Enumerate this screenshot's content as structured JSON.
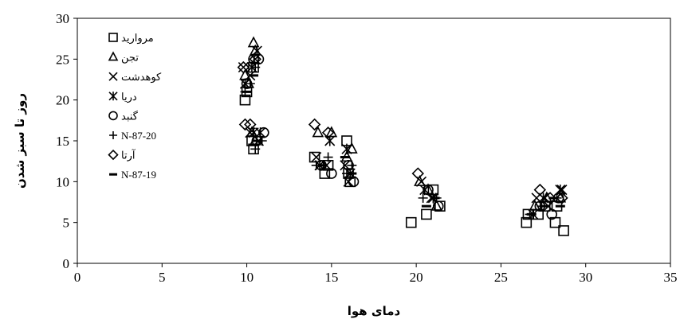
{
  "chart_data": {
    "type": "scatter",
    "title": "",
    "xlabel": "دمای هوا",
    "ylabel": "روز تا سبز شدن",
    "xlim": [
      0,
      35
    ],
    "ylim": [
      0,
      30
    ],
    "x_ticks": [
      "0",
      "5",
      "10",
      "15",
      "20",
      "25",
      "30",
      "35"
    ],
    "y_ticks": [
      "0",
      "5",
      "10",
      "15",
      "20",
      "25",
      "30"
    ],
    "grid": false,
    "legend_position": "top-left inside",
    "series": [
      {
        "name": "مروارید",
        "marker": "square",
        "points": [
          [
            9.9,
            20
          ],
          [
            10,
            21
          ],
          [
            10.4,
            24
          ],
          [
            10.3,
            15
          ],
          [
            10.4,
            14
          ],
          [
            14,
            13
          ],
          [
            14.6,
            11
          ],
          [
            14.8,
            12
          ],
          [
            15.9,
            15
          ],
          [
            16,
            11
          ],
          [
            16.1,
            10
          ],
          [
            19.7,
            5
          ],
          [
            20.6,
            6
          ],
          [
            21,
            9
          ],
          [
            21.4,
            7
          ],
          [
            26.5,
            5
          ],
          [
            26.6,
            6
          ],
          [
            27.2,
            6
          ],
          [
            27.6,
            7
          ],
          [
            28.2,
            5
          ],
          [
            28.7,
            4
          ],
          [
            28.3,
            7
          ]
        ]
      },
      {
        "name": "تجن",
        "marker": "triangle",
        "points": [
          [
            9.9,
            23
          ],
          [
            10.1,
            22
          ],
          [
            10.4,
            27
          ],
          [
            10.5,
            26
          ],
          [
            10.3,
            16
          ],
          [
            10.5,
            15
          ],
          [
            14.2,
            16
          ],
          [
            15,
            16
          ],
          [
            15.9,
            13
          ],
          [
            16.2,
            14
          ],
          [
            20.2,
            10
          ],
          [
            20.7,
            9
          ],
          [
            21.2,
            7
          ],
          [
            27,
            7
          ],
          [
            27.7,
            8
          ],
          [
            28.5,
            8
          ]
        ]
      },
      {
        "name": "کوهدشت",
        "marker": "x",
        "points": [
          [
            9.8,
            24
          ],
          [
            10.2,
            23
          ],
          [
            10.5,
            25
          ],
          [
            10.2,
            16
          ],
          [
            10.7,
            15
          ],
          [
            14.1,
            13
          ],
          [
            14.7,
            12
          ],
          [
            15.8,
            12
          ],
          [
            16,
            10
          ],
          [
            20.3,
            10
          ],
          [
            20.9,
            8
          ],
          [
            27.1,
            8
          ],
          [
            27.8,
            7
          ],
          [
            28.6,
            9
          ]
        ]
      },
      {
        "name": "دریا",
        "marker": "asterisk",
        "points": [
          [
            9.9,
            22
          ],
          [
            10.3,
            24
          ],
          [
            10.6,
            26
          ],
          [
            10.4,
            16
          ],
          [
            10.8,
            16
          ],
          [
            14.3,
            12
          ],
          [
            14.9,
            15
          ],
          [
            15.9,
            14
          ],
          [
            16.1,
            11
          ],
          [
            20.5,
            9
          ],
          [
            21,
            8
          ],
          [
            26.9,
            6
          ],
          [
            27.5,
            8
          ],
          [
            28.5,
            9
          ]
        ]
      },
      {
        "name": "گنبد",
        "marker": "circle",
        "points": [
          [
            10,
            22
          ],
          [
            10.4,
            25
          ],
          [
            10.7,
            25
          ],
          [
            10.6,
            15
          ],
          [
            11,
            16
          ],
          [
            14.4,
            12
          ],
          [
            15,
            11
          ],
          [
            16,
            12
          ],
          [
            16.3,
            10
          ],
          [
            20.7,
            9
          ],
          [
            21.3,
            7
          ],
          [
            27.3,
            7
          ],
          [
            28,
            6
          ],
          [
            28.4,
            8
          ]
        ]
      },
      {
        "name": "N-87-20",
        "marker": "plus",
        "points": [
          [
            9.9,
            21
          ],
          [
            10.2,
            22
          ],
          [
            10.5,
            24
          ],
          [
            10.5,
            14
          ],
          [
            10.9,
            15
          ],
          [
            14.1,
            12
          ],
          [
            14.8,
            13
          ],
          [
            15.9,
            11
          ],
          [
            16.2,
            12
          ],
          [
            20.4,
            8
          ],
          [
            21.2,
            8
          ],
          [
            26.7,
            6
          ],
          [
            27.4,
            7
          ],
          [
            28.3,
            8
          ]
        ]
      },
      {
        "name": "آرتا",
        "marker": "diamond",
        "points": [
          [
            9.8,
            24
          ],
          [
            9.9,
            17
          ],
          [
            10.2,
            17
          ],
          [
            10.5,
            25
          ],
          [
            14,
            17
          ],
          [
            14.8,
            16
          ],
          [
            20.1,
            11
          ],
          [
            27.3,
            9
          ],
          [
            28.6,
            8
          ],
          [
            27.9,
            8
          ]
        ]
      },
      {
        "name": "N-87-19",
        "marker": "dash",
        "points": [
          [
            10,
            21
          ],
          [
            10.4,
            23
          ],
          [
            10.6,
            15
          ],
          [
            14.5,
            12
          ],
          [
            15.8,
            13
          ],
          [
            16.2,
            11
          ],
          [
            20.6,
            7
          ],
          [
            21.1,
            8
          ],
          [
            26.8,
            6
          ],
          [
            27.6,
            7
          ],
          [
            28.1,
            8
          ],
          [
            28.5,
            7
          ]
        ]
      }
    ]
  }
}
